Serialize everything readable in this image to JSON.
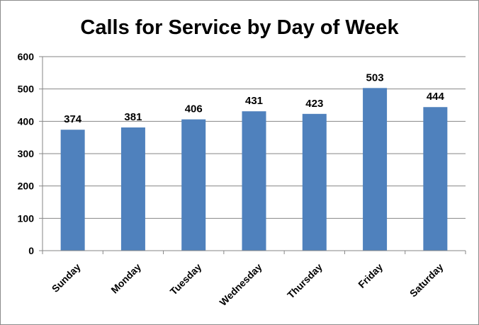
{
  "chart_data": {
    "type": "bar",
    "title": "Calls for Service by Day of Week",
    "xlabel": "",
    "ylabel": "",
    "categories": [
      "Sunday",
      "Monday",
      "Tuesday",
      "Wednesday",
      "Thursday",
      "Friday",
      "Saturday"
    ],
    "values": [
      374,
      381,
      406,
      431,
      423,
      503,
      444
    ],
    "ylim": [
      0,
      600
    ],
    "yticks": [
      0,
      100,
      200,
      300,
      400,
      500,
      600
    ],
    "grid": true,
    "legend": "none",
    "data_labels": true,
    "bar_color": "#4F81BD",
    "grid_color": "#868686"
  }
}
